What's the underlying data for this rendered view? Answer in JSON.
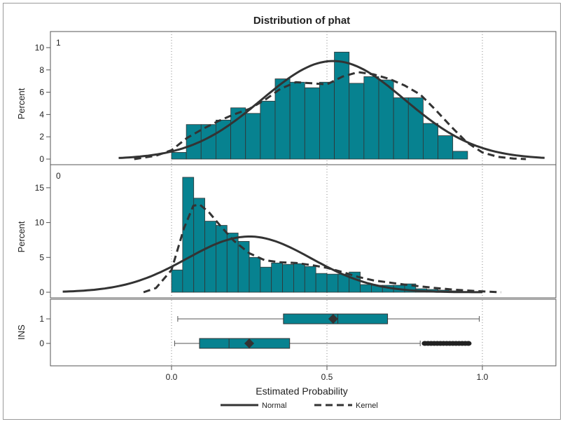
{
  "chart_data": {
    "type": "bar",
    "title": "Distribution of phat",
    "xlabel": "Estimated Probability",
    "xlim": [
      -0.35,
      1.22
    ],
    "x_ticks": [
      0.0,
      0.5,
      1.0
    ],
    "x_tick_labels": [
      "0.0",
      "0.5",
      "1.0"
    ],
    "reference_lines": [
      0.0,
      0.5,
      1.0
    ],
    "bin_width": 0.0476,
    "bar_color": "#078290",
    "curve_color": "#333333",
    "legend": {
      "position": "bottom",
      "entries": [
        {
          "label": "Normal",
          "style": "solid"
        },
        {
          "label": "Kernel",
          "style": "dashed"
        }
      ]
    },
    "panels": [
      {
        "label": "1",
        "ylabel": "Percent",
        "ylim": [
          0,
          10.5
        ],
        "y_ticks": [
          0,
          2,
          4,
          6,
          8,
          10
        ],
        "y_tick_labels": [
          "0",
          "2",
          "4",
          "6",
          "8",
          "10"
        ],
        "bin_starts": [
          0.0,
          0.0476,
          0.0952,
          0.1429,
          0.1905,
          0.2381,
          0.2857,
          0.3333,
          0.381,
          0.4286,
          0.4762,
          0.5238,
          0.5714,
          0.619,
          0.6667,
          0.7143,
          0.7619,
          0.8095,
          0.8571,
          0.9048,
          0.9524
        ],
        "values": [
          0.6,
          3.1,
          3.1,
          3.5,
          4.6,
          4.1,
          5.2,
          7.2,
          6.9,
          6.4,
          6.9,
          9.6,
          6.8,
          7.4,
          7.1,
          5.5,
          5.5,
          3.2,
          2.1,
          0.7,
          0.0
        ],
        "normal": {
          "mean": 0.52,
          "peak": 8.8,
          "x_range": [
            -0.17,
            1.2
          ]
        },
        "kernel": [
          [
            -0.12,
            0.0
          ],
          [
            -0.05,
            0.3
          ],
          [
            0.0,
            0.8
          ],
          [
            0.05,
            1.9
          ],
          [
            0.1,
            2.7
          ],
          [
            0.15,
            3.4
          ],
          [
            0.2,
            4.0
          ],
          [
            0.25,
            4.5
          ],
          [
            0.3,
            5.3
          ],
          [
            0.35,
            6.3
          ],
          [
            0.4,
            6.9
          ],
          [
            0.45,
            6.8
          ],
          [
            0.5,
            6.7
          ],
          [
            0.55,
            7.4
          ],
          [
            0.6,
            7.8
          ],
          [
            0.65,
            7.6
          ],
          [
            0.7,
            7.2
          ],
          [
            0.75,
            6.6
          ],
          [
            0.8,
            5.8
          ],
          [
            0.85,
            4.4
          ],
          [
            0.9,
            2.9
          ],
          [
            0.95,
            1.5
          ],
          [
            1.0,
            0.6
          ],
          [
            1.05,
            0.2
          ],
          [
            1.1,
            0.05
          ],
          [
            1.14,
            0.0
          ]
        ]
      },
      {
        "label": "0",
        "ylabel": "Percent",
        "ylim": [
          0,
          17
        ],
        "y_ticks": [
          0,
          5,
          10,
          15
        ],
        "y_tick_labels": [
          "0",
          "5",
          "10",
          "15"
        ],
        "bin_starts": [
          0.0,
          0.0357,
          0.0714,
          0.1071,
          0.1429,
          0.1786,
          0.2143,
          0.25,
          0.2857,
          0.3214,
          0.3571,
          0.3929,
          0.4286,
          0.4643,
          0.5,
          0.5357,
          0.5714,
          0.6071,
          0.6429,
          0.6786,
          0.7143,
          0.75,
          0.7857,
          0.8214,
          0.8571,
          0.8929,
          0.9286,
          0.9643
        ],
        "values": [
          3.2,
          16.5,
          13.5,
          10.2,
          9.6,
          8.5,
          7.3,
          5.0,
          3.6,
          4.2,
          4.0,
          4.1,
          3.7,
          2.7,
          2.6,
          2.6,
          2.9,
          1.1,
          1.0,
          1.0,
          1.0,
          1.2,
          0.5,
          0.4,
          0.3,
          0.2,
          0.1,
          0.0
        ],
        "normal": {
          "mean": 0.25,
          "peak": 8.0,
          "x_range": [
            -0.35,
            1.0
          ]
        },
        "kernel": [
          [
            -0.09,
            0.0
          ],
          [
            -0.05,
            0.6
          ],
          [
            0.0,
            3.2
          ],
          [
            0.04,
            9.2
          ],
          [
            0.07,
            12.4
          ],
          [
            0.09,
            12.6
          ],
          [
            0.12,
            11.5
          ],
          [
            0.16,
            9.4
          ],
          [
            0.2,
            7.4
          ],
          [
            0.25,
            5.6
          ],
          [
            0.3,
            4.6
          ],
          [
            0.35,
            4.3
          ],
          [
            0.4,
            4.2
          ],
          [
            0.45,
            3.9
          ],
          [
            0.5,
            3.5
          ],
          [
            0.55,
            2.9
          ],
          [
            0.6,
            2.2
          ],
          [
            0.65,
            1.7
          ],
          [
            0.7,
            1.4
          ],
          [
            0.75,
            1.1
          ],
          [
            0.8,
            0.85
          ],
          [
            0.85,
            0.6
          ],
          [
            0.9,
            0.4
          ],
          [
            0.95,
            0.25
          ],
          [
            1.0,
            0.12
          ],
          [
            1.06,
            0.0
          ]
        ]
      }
    ],
    "boxplot": {
      "ylabel": "INS",
      "categories": [
        "1",
        "0"
      ],
      "boxes": [
        {
          "category": "1",
          "whisker_low": 0.02,
          "q1": 0.36,
          "median": 0.535,
          "mean": 0.52,
          "q3": 0.695,
          "whisker_high": 0.99,
          "outliers": []
        },
        {
          "category": "0",
          "whisker_low": 0.01,
          "q1": 0.09,
          "median": 0.185,
          "mean": 0.25,
          "q3": 0.38,
          "whisker_high": 0.8,
          "outliers": [
            0.815,
            0.825,
            0.835,
            0.845,
            0.855,
            0.865,
            0.875,
            0.885,
            0.895,
            0.905,
            0.915,
            0.925,
            0.935,
            0.945,
            0.955
          ]
        }
      ]
    }
  }
}
